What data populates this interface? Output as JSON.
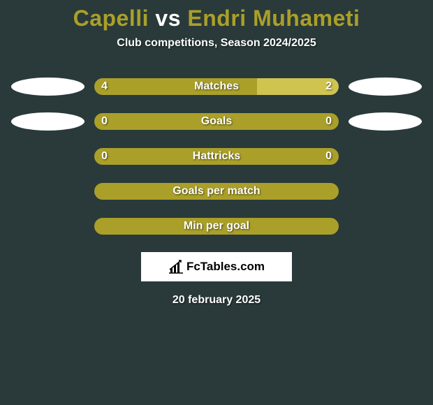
{
  "title": {
    "p1": "Capelli",
    "vs": "vs",
    "p2": "Endri Muhameti"
  },
  "title_colors": {
    "p1": "#aaa029",
    "vs": "#ffffff",
    "p2": "#aaa029"
  },
  "subtitle": "Club competitions, Season 2024/2025",
  "avatar_color": "#ffffff",
  "rows": [
    {
      "key": "matches",
      "label": "Matches",
      "left_value": "4",
      "right_value": "2",
      "left_width_pct": 66.6,
      "right_width_pct": 33.4,
      "left_color": "#aaa029",
      "right_color": "#cfc450",
      "show_left_avatar": true,
      "show_right_avatar": true,
      "show_left_value": true,
      "show_right_value": true
    },
    {
      "key": "goals",
      "label": "Goals",
      "left_value": "0",
      "right_value": "0",
      "left_width_pct": 50,
      "right_width_pct": 50,
      "left_color": "#aaa029",
      "right_color": "#aaa029",
      "show_left_avatar": true,
      "show_right_avatar": true,
      "show_left_value": true,
      "show_right_value": true
    },
    {
      "key": "hattricks",
      "label": "Hattricks",
      "left_value": "0",
      "right_value": "0",
      "left_width_pct": 50,
      "right_width_pct": 50,
      "left_color": "#aaa029",
      "right_color": "#aaa029",
      "show_left_avatar": false,
      "show_right_avatar": false,
      "show_left_value": true,
      "show_right_value": true
    },
    {
      "key": "gpm",
      "label": "Goals per match",
      "left_value": "",
      "right_value": "",
      "left_width_pct": 50,
      "right_width_pct": 50,
      "left_color": "#aaa029",
      "right_color": "#aaa029",
      "show_left_avatar": false,
      "show_right_avatar": false,
      "show_left_value": false,
      "show_right_value": false
    },
    {
      "key": "mpg",
      "label": "Min per goal",
      "left_value": "",
      "right_value": "",
      "left_width_pct": 50,
      "right_width_pct": 50,
      "left_color": "#aaa029",
      "right_color": "#aaa029",
      "show_left_avatar": false,
      "show_right_avatar": false,
      "show_left_value": false,
      "show_right_value": false
    }
  ],
  "logo_text": "FcTables.com",
  "date": "20 february 2025",
  "background_color": "#2a3a3a"
}
